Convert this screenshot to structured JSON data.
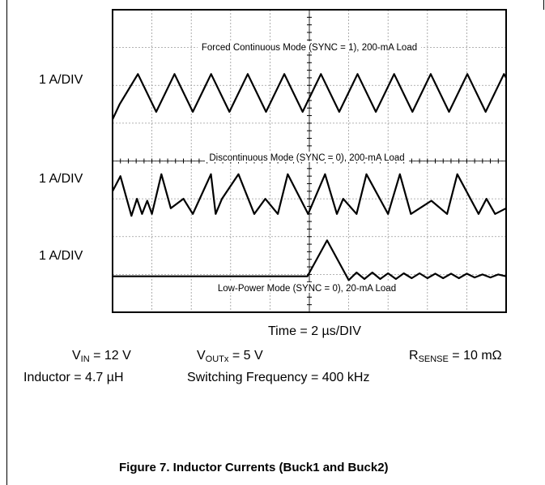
{
  "chart_data": {
    "type": "line",
    "subtype": "oscilloscope",
    "grid": true,
    "series": [
      {
        "name": "Forced Continuous Mode (SYNC = 1), 200-mA Load",
        "scale_label": "1 A/DIV",
        "waveform": "triangle",
        "period_div": 0.93,
        "peak_to_peak_div": 1.0,
        "t": [
          0.0,
          0.18,
          0.645,
          1.11,
          1.575,
          2.04,
          2.505,
          2.97,
          3.435,
          3.9,
          4.365,
          4.83,
          5.295,
          5.76,
          6.225,
          6.69,
          7.155,
          7.62,
          8.085,
          8.55,
          9.015,
          9.48,
          9.945,
          10.0
        ],
        "i_div": [
          5.1,
          5.5,
          6.3,
          5.3,
          6.3,
          5.3,
          6.3,
          5.3,
          6.3,
          5.3,
          6.3,
          5.3,
          6.3,
          5.3,
          6.3,
          5.3,
          6.3,
          5.3,
          6.3,
          5.3,
          6.3,
          5.3,
          6.3,
          6.2
        ]
      },
      {
        "name": "Discontinuous Mode (SYNC = 0), 200-mA Load",
        "scale_label": "1 A/DIV",
        "waveform": "triangle-with-ringing",
        "period_div": 1.24,
        "t": [
          0.0,
          0.2,
          0.48,
          0.62,
          0.75,
          0.88,
          1.0,
          1.24,
          1.48,
          1.8,
          2.04,
          2.5,
          2.62,
          2.78,
          3.2,
          3.6,
          3.88,
          4.2,
          4.45,
          4.97,
          5.4,
          5.7,
          5.86,
          6.2,
          6.45,
          7.0,
          7.3,
          7.58,
          8.1,
          8.5,
          8.76,
          9.3,
          9.5,
          9.72,
          10.0
        ],
        "i_div": [
          3.2,
          3.6,
          2.55,
          3.0,
          2.6,
          2.95,
          2.6,
          3.65,
          2.75,
          3.0,
          2.6,
          3.65,
          2.6,
          3.0,
          3.65,
          2.6,
          3.0,
          2.6,
          3.65,
          2.6,
          3.65,
          2.6,
          3.0,
          2.6,
          3.65,
          2.6,
          3.65,
          2.6,
          2.95,
          2.6,
          3.65,
          2.6,
          3.0,
          2.6,
          2.75
        ]
      },
      {
        "name": "Low-Power Mode (SYNC = 0), 20-mA Load",
        "scale_label": "1 A/DIV",
        "waveform": "single-pulse",
        "t": [
          0.0,
          4.95,
          5.45,
          6.0,
          6.2,
          6.4,
          6.6,
          6.8,
          7.0,
          7.2,
          7.4,
          7.6,
          7.8,
          8.0,
          8.2,
          8.4,
          8.6,
          8.8,
          9.0,
          9.2,
          9.4,
          9.6,
          9.8,
          10.0
        ],
        "i_div": [
          0.95,
          0.95,
          1.9,
          0.85,
          1.05,
          0.88,
          1.05,
          0.88,
          1.03,
          0.88,
          1.03,
          0.9,
          1.03,
          0.9,
          1.02,
          0.9,
          1.02,
          0.9,
          1.02,
          0.92,
          1.0,
          0.92,
          1.0,
          0.95
        ]
      }
    ],
    "trace_labels": [
      "Forced Continuous Mode (SYNC = 1), 200-mA Load",
      "Discontinuous Mode (SYNC = 0), 200-mA Load",
      "Low-Power Mode (SYNC = 0), 20-mA Load"
    ],
    "y_scale_labels": [
      "1 A/DIV",
      "1 A/DIV",
      "1 A/DIV"
    ],
    "x_scale_label": "Time = 2 µs/DIV",
    "x_divisions": 10,
    "y_divisions": 8
  },
  "conditions": {
    "vin_label": "V",
    "vin_sub": "IN",
    "vin_value": " = 12 V",
    "vout_label": "V",
    "vout_sub": "OUTx",
    "vout_value": " = 5 V",
    "rsense_label": "R",
    "rsense_sub": "SENSE",
    "rsense_value": " = 10 mΩ",
    "inductor": "Inductor = 4.7 µH",
    "switching": "Switching Frequency = 400 kHz"
  },
  "caption": "Figure 7. Inductor Currents (Buck1 and Buck2)"
}
